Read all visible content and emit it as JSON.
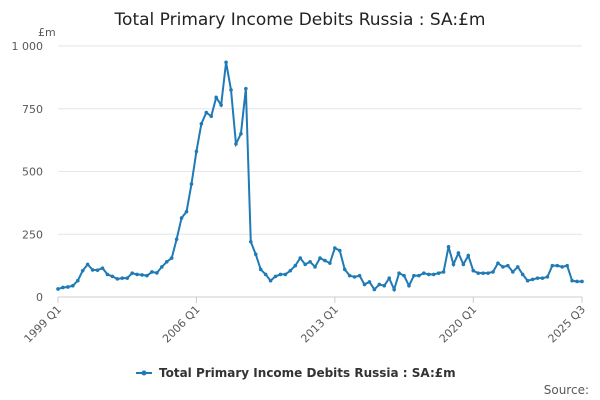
{
  "chart_data": {
    "type": "line",
    "title": "Total Primary Income Debits Russia : SA:£m",
    "unit_label": "£m",
    "source_label": "Source:",
    "ylim": [
      0,
      1000
    ],
    "y_ticks": [
      {
        "value": 0,
        "label": "0"
      },
      {
        "value": 250,
        "label": "250"
      },
      {
        "value": 500,
        "label": "500"
      },
      {
        "value": 750,
        "label": "750"
      },
      {
        "value": 1000,
        "label": "1 000"
      }
    ],
    "x_ticks": [
      {
        "index": 0,
        "label": "1999 Q1"
      },
      {
        "index": 28,
        "label": "2006 Q1"
      },
      {
        "index": 56,
        "label": "2013 Q1"
      },
      {
        "index": 84,
        "label": "2020 Q1"
      },
      {
        "index": 106,
        "label": "2025 Q3"
      }
    ],
    "grid": true,
    "legend_position": "bottom-center",
    "line_color": "#1f7ab5",
    "series": [
      {
        "name": "Total Primary Income Debits Russia : SA:£m",
        "values": [
          32,
          38,
          40,
          45,
          65,
          105,
          130,
          108,
          107,
          115,
          90,
          82,
          72,
          75,
          75,
          95,
          90,
          88,
          85,
          100,
          96,
          120,
          140,
          155,
          230,
          315,
          340,
          450,
          580,
          690,
          735,
          720,
          795,
          765,
          935,
          825,
          610,
          650,
          830,
          220,
          170,
          110,
          90,
          65,
          82,
          90,
          90,
          105,
          125,
          155,
          130,
          140,
          120,
          155,
          145,
          135,
          195,
          185,
          110,
          85,
          80,
          85,
          50,
          60,
          30,
          50,
          45,
          75,
          30,
          95,
          85,
          45,
          85,
          85,
          95,
          90,
          90,
          95,
          100,
          200,
          130,
          175,
          130,
          165,
          105,
          95,
          95,
          95,
          100,
          135,
          120,
          125,
          100,
          120,
          90,
          65,
          70,
          75,
          75,
          80,
          125,
          125,
          120,
          125,
          65,
          62,
          62
        ]
      }
    ]
  }
}
